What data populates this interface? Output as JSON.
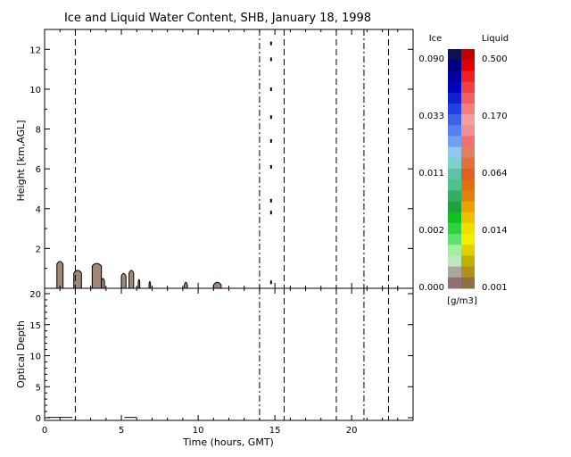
{
  "chart_data": [
    {
      "type": "heatmap",
      "title": "Ice and Liquid Water Content, SHB, January 18, 1998",
      "ylabel": "Height [km,AGL]",
      "xlim": [
        0,
        24
      ],
      "ylim": [
        0,
        13
      ],
      "x_ticks": [
        0,
        5,
        10,
        15,
        20
      ],
      "y_ticks": [
        2,
        4,
        6,
        8,
        10,
        12
      ],
      "vlines": [
        {
          "x": 2.0,
          "style": "dash"
        },
        {
          "x": 14.0,
          "style": "dashdot"
        },
        {
          "x": 15.6,
          "style": "dash"
        },
        {
          "x": 19.0,
          "style": "dash"
        },
        {
          "x": 20.8,
          "style": "dashdot"
        },
        {
          "x": 22.4,
          "style": "dash"
        }
      ],
      "cloud_regions": [
        {
          "x0": 0.8,
          "x1": 1.2,
          "top": 1.35,
          "color": "#a08878"
        },
        {
          "x0": 1.9,
          "x1": 2.4,
          "top": 0.9,
          "color": "#a08878"
        },
        {
          "x0": 3.1,
          "x1": 3.7,
          "top": 1.25,
          "color": "#a08878"
        },
        {
          "x0": 3.7,
          "x1": 3.9,
          "top": 0.5,
          "color": "#a08878"
        },
        {
          "x0": 5.0,
          "x1": 5.3,
          "top": 0.75,
          "color": "#a08878"
        },
        {
          "x0": 5.5,
          "x1": 5.8,
          "top": 0.9,
          "color": "#a08878"
        },
        {
          "x0": 6.1,
          "x1": 6.2,
          "top": 0.45,
          "color": "#a08878"
        },
        {
          "x0": 6.8,
          "x1": 6.9,
          "top": 0.35,
          "color": "#a08878"
        },
        {
          "x0": 9.1,
          "x1": 9.3,
          "top": 0.3,
          "color": "#a08878"
        },
        {
          "x0": 11.0,
          "x1": 11.5,
          "top": 0.3,
          "color": "#a08878"
        }
      ],
      "cloud_dots": [
        {
          "x": 14.75,
          "y": 12.3
        },
        {
          "x": 14.75,
          "y": 11.5
        },
        {
          "x": 14.75,
          "y": 10.0
        },
        {
          "x": 14.75,
          "y": 8.6
        },
        {
          "x": 14.75,
          "y": 7.4
        },
        {
          "x": 14.75,
          "y": 6.1
        },
        {
          "x": 14.75,
          "y": 4.4
        },
        {
          "x": 14.75,
          "y": 3.8
        },
        {
          "x": 14.75,
          "y": 0.3
        }
      ]
    },
    {
      "type": "line",
      "ylabel": "Optical Depth",
      "xlabel": "Time (hours, GMT)",
      "xlim": [
        0,
        24
      ],
      "ylim": [
        0,
        20
      ],
      "x_ticks": [
        0,
        5,
        10,
        15,
        20
      ],
      "y_ticks": [
        0,
        5,
        10,
        15,
        20
      ],
      "x_tick_labels": [
        "0",
        "5",
        "10",
        "15",
        "20"
      ],
      "y_tick_labels": [
        "0",
        "5",
        "10",
        "15",
        "20"
      ],
      "vlines": [
        {
          "x": 2.0,
          "style": "dash"
        },
        {
          "x": 14.0,
          "style": "dashdot"
        },
        {
          "x": 15.6,
          "style": "dash"
        },
        {
          "x": 19.0,
          "style": "dash"
        },
        {
          "x": 20.8,
          "style": "dashdot"
        },
        {
          "x": 22.4,
          "style": "dash"
        }
      ],
      "series": [
        {
          "x": [
            0.2,
            1.0,
            1.8
          ],
          "y": [
            0.05,
            0.05,
            0.05
          ]
        },
        {
          "x": [
            5.2,
            5.6,
            6.0
          ],
          "y": [
            0.05,
            0.05,
            0.05
          ]
        }
      ]
    }
  ],
  "colorbar": {
    "ice_label": "Ice",
    "liquid_label": "Liquid",
    "units": "[g/m3]",
    "ice_ticks": [
      "0.090",
      "0.033",
      "0.011",
      "0.002",
      "0.000"
    ],
    "liquid_ticks": [
      "0.500",
      "0.170",
      "0.064",
      "0.014",
      "0.001"
    ],
    "ice_colors": [
      "#101050",
      "#000080",
      "#0000a0",
      "#0000c0",
      "#1020d0",
      "#2040e0",
      "#4060e8",
      "#5880f0",
      "#70a0f0",
      "#90c8f0",
      "#80d0d0",
      "#60c0a8",
      "#50c090",
      "#30b060",
      "#20a040",
      "#10c020",
      "#30d040",
      "#60e070",
      "#a0f0a0",
      "#c0e8c0",
      "#a8a8a0",
      "#907070"
    ],
    "liquid_colors": [
      "#c00000",
      "#e00000",
      "#f02020",
      "#f04040",
      "#f06060",
      "#f08080",
      "#f0a0a0",
      "#f09090",
      "#f07070",
      "#e08060",
      "#e07040",
      "#e06020",
      "#e07010",
      "#e08010",
      "#f0a000",
      "#f0c000",
      "#f0e000",
      "#f0f000",
      "#e0d000",
      "#c0b000",
      "#b09020",
      "#907040"
    ]
  }
}
